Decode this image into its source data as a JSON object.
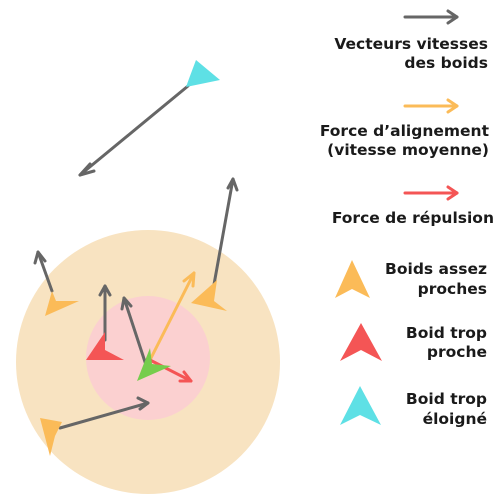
{
  "colors": {
    "outer_zone": "#f8e3c1",
    "inner_zone": "#fbd0d0",
    "velocity_arrow": "#666666",
    "alignment_arrow": "#fbbb58",
    "repulsion_arrow": "#f45555",
    "boid_center": "#76cd4d",
    "boid_near": "#fbbb58",
    "boid_too_close": "#f45555",
    "boid_far": "#5ee0e5"
  },
  "legend": {
    "velocity_label_line1": "Vecteurs vitesses",
    "velocity_label_line2": "des boids",
    "alignment_label_line1": "Force d’alignement",
    "alignment_label_line2": "(vitesse moyenne)",
    "repulsion_label": "Force de répulsion",
    "near_label_line1": "Boids assez",
    "near_label_line2": "proches",
    "too_close_label_line1": "Boid trop",
    "too_close_label_line2": "proche",
    "far_label_line1": "Boid trop",
    "far_label_line2": "éloigné"
  },
  "icons": {
    "velocity_arrow": "gray-arrow-icon",
    "alignment_arrow": "orange-arrow-icon",
    "repulsion_arrow": "red-arrow-icon",
    "near_boid": "orange-boid-icon",
    "too_close_boid": "red-boid-icon",
    "far_boid": "cyan-boid-icon"
  }
}
